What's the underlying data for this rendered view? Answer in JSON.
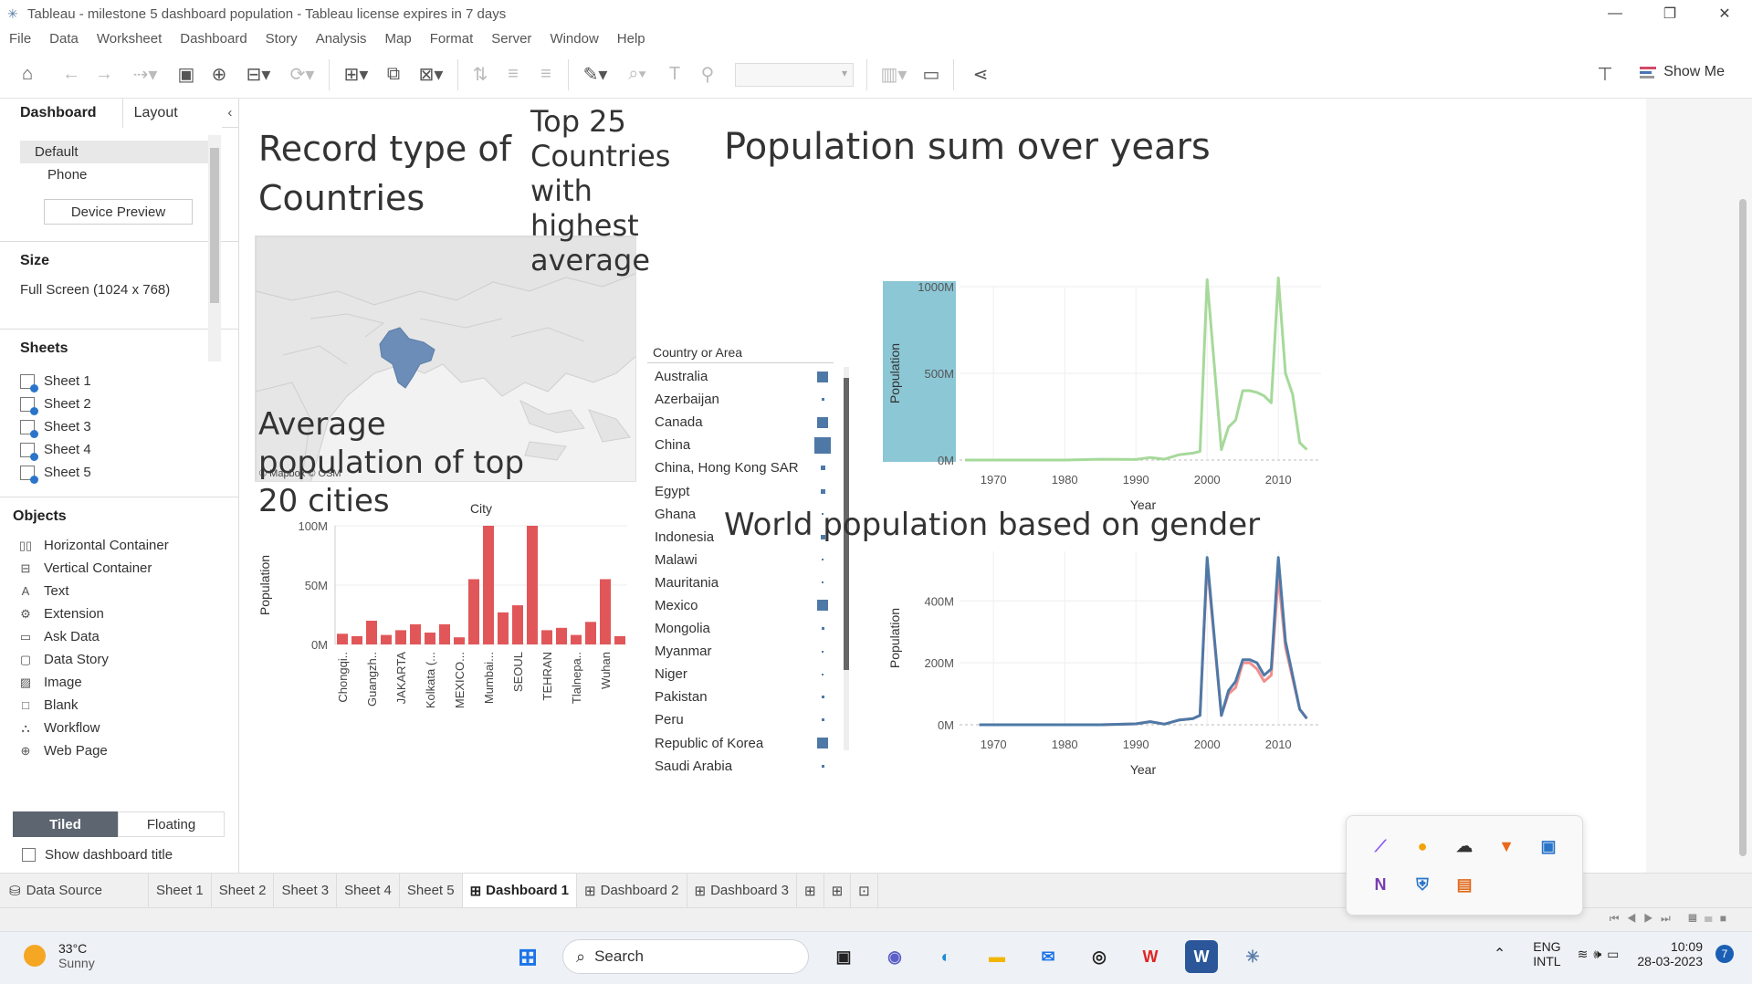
{
  "window": {
    "title": "Tableau - milestone 5 dashboard population - Tableau license expires in 7 days",
    "minimize": "—",
    "restore": "❐",
    "close": "✕"
  },
  "menu": [
    "File",
    "Data",
    "Worksheet",
    "Dashboard",
    "Story",
    "Analysis",
    "Map",
    "Format",
    "Server",
    "Window",
    "Help"
  ],
  "toolbar": {
    "show_me": "Show Me"
  },
  "left_panel": {
    "tabs": {
      "dashboard": "Dashboard",
      "layout": "Layout"
    },
    "devices": {
      "default": "Default",
      "phone": "Phone",
      "device_preview": "Device Preview"
    },
    "size": {
      "heading": "Size",
      "value": "Full Screen (1024 x 768)"
    },
    "sheets": {
      "heading": "Sheets",
      "items": [
        "Sheet 1",
        "Sheet 2",
        "Sheet 3",
        "Sheet 4",
        "Sheet 5"
      ]
    },
    "objects": {
      "heading": "Objects",
      "items": [
        {
          "label": "Horizontal Container",
          "icon": "horizontal-container-icon",
          "glyph": "▯▯"
        },
        {
          "label": "Vertical Container",
          "icon": "vertical-container-icon",
          "glyph": "⊟"
        },
        {
          "label": "Text",
          "icon": "text-icon",
          "glyph": "A"
        },
        {
          "label": "Extension",
          "icon": "extension-icon",
          "glyph": "⚙"
        },
        {
          "label": "Ask Data",
          "icon": "ask-data-icon",
          "glyph": "▭"
        },
        {
          "label": "Data Story",
          "icon": "data-story-icon",
          "glyph": "▢"
        },
        {
          "label": "Image",
          "icon": "image-icon",
          "glyph": "▨"
        },
        {
          "label": "Blank",
          "icon": "blank-icon",
          "glyph": "□"
        },
        {
          "label": "Workflow",
          "icon": "workflow-icon",
          "glyph": "⛬"
        },
        {
          "label": "Web Page",
          "icon": "web-page-icon",
          "glyph": "⊕"
        }
      ]
    },
    "layout_mode": {
      "tiled": "Tiled",
      "floating": "Floating"
    },
    "show_title": "Show dashboard title"
  },
  "dashboard": {
    "map_title": "Record type of Countries",
    "map_credit": "© Mapbox © OSM",
    "top25_title": "Top 25 Countries with highest average",
    "legend": {
      "heading": "Country or Area",
      "rows": [
        {
          "name": "Australia",
          "size": 12
        },
        {
          "name": "Azerbaijan",
          "size": 3
        },
        {
          "name": "Canada",
          "size": 12
        },
        {
          "name": "China",
          "size": 18
        },
        {
          "name": "China, Hong Kong SAR",
          "size": 5
        },
        {
          "name": "Egypt",
          "size": 5
        },
        {
          "name": "Ghana",
          "size": 2
        },
        {
          "name": "Indonesia",
          "size": 5
        },
        {
          "name": "Malawi",
          "size": 2
        },
        {
          "name": "Mauritania",
          "size": 2
        },
        {
          "name": "Mexico",
          "size": 12
        },
        {
          "name": "Mongolia",
          "size": 3
        },
        {
          "name": "Myanmar",
          "size": 2
        },
        {
          "name": "Niger",
          "size": 2
        },
        {
          "name": "Pakistan",
          "size": 3
        },
        {
          "name": "Peru",
          "size": 3
        },
        {
          "name": "Republic of Korea",
          "size": 12
        },
        {
          "name": "Saudi Arabia",
          "size": 3
        }
      ]
    },
    "cities_title": "Average population of top 20 cities",
    "pop_years_title": "Population sum over years",
    "gender_title": "World population based on gender"
  },
  "chart_data": [
    {
      "type": "bar",
      "title": "Average population of top 20 cities",
      "column_header": "City",
      "ylabel": "Population",
      "ylim": [
        0,
        100000000
      ],
      "yticks": [
        "0M",
        "50M",
        "100M"
      ],
      "color": "#e15759",
      "categories": [
        "Chongqi..",
        "",
        "Guangzh..",
        "",
        "JAKARTA",
        "",
        "Kolkata (...",
        "",
        "MEXICO...",
        "",
        "Mumbai...",
        "",
        "SEOUL",
        "",
        "TEHRAN",
        "",
        "Tlalnepa..",
        "",
        "Wuhan",
        ""
      ],
      "values": [
        9000000,
        7000000,
        20000000,
        8000000,
        12000000,
        17000000,
        10000000,
        17000000,
        6000000,
        55000000,
        100000000,
        27000000,
        33000000,
        100000000,
        12000000,
        14000000,
        8000000,
        19000000,
        55000000,
        7000000
      ]
    },
    {
      "type": "line",
      "title": "Population sum over years",
      "xlabel": "Year",
      "ylabel": "Population",
      "xlim": [
        1966,
        2016
      ],
      "ylim": [
        0,
        1000000000
      ],
      "xticks": [
        "1970",
        "1980",
        "1990",
        "2000",
        "2010"
      ],
      "yticks": [
        "0M",
        "500M",
        "1000M"
      ],
      "color": "#a6d99a",
      "x": [
        1966,
        1970,
        1975,
        1980,
        1985,
        1990,
        1992,
        1994,
        1996,
        1998,
        1999,
        2000,
        2002,
        2003,
        2004,
        2005,
        2006,
        2007,
        2008,
        2009,
        2010,
        2011,
        2012,
        2013,
        2014
      ],
      "y": [
        0,
        0,
        0,
        0,
        5000000,
        3000000,
        15000000,
        5000000,
        30000000,
        40000000,
        50000000,
        1040000000,
        60000000,
        190000000,
        230000000,
        400000000,
        400000000,
        390000000,
        370000000,
        330000000,
        1050000000,
        500000000,
        380000000,
        100000000,
        60000000
      ]
    },
    {
      "type": "line",
      "title": "World population based on gender",
      "xlabel": "Year",
      "ylabel": "Population",
      "xlim": [
        1966,
        2016
      ],
      "ylim": [
        0,
        560000000
      ],
      "xticks": [
        "1970",
        "1980",
        "1990",
        "2000",
        "2010"
      ],
      "yticks": [
        "0M",
        "200M",
        "400M"
      ],
      "series": [
        {
          "color": "#f28e8c",
          "x": [
            1968,
            1975,
            1980,
            1985,
            1990,
            1992,
            1994,
            1996,
            1998,
            1999,
            2000,
            2002,
            2003,
            2004,
            2005,
            2006,
            2007,
            2008,
            2009,
            2010,
            2011,
            2012,
            2013,
            2014
          ],
          "y": [
            0,
            0,
            0,
            0,
            3000000,
            10000000,
            2000000,
            15000000,
            20000000,
            30000000,
            520000000,
            30000000,
            100000000,
            120000000,
            200000000,
            200000000,
            180000000,
            140000000,
            160000000,
            480000000,
            250000000,
            150000000,
            50000000,
            20000000
          ]
        },
        {
          "color": "#4e79a7",
          "x": [
            1968,
            1975,
            1980,
            1985,
            1990,
            1992,
            1994,
            1996,
            1998,
            1999,
            2000,
            2002,
            2003,
            2004,
            2005,
            2006,
            2007,
            2008,
            2009,
            2010,
            2011,
            2012,
            2013,
            2014
          ],
          "y": [
            0,
            0,
            0,
            0,
            3000000,
            10000000,
            2000000,
            15000000,
            20000000,
            30000000,
            540000000,
            30000000,
            110000000,
            140000000,
            210000000,
            210000000,
            200000000,
            160000000,
            180000000,
            540000000,
            270000000,
            160000000,
            50000000,
            20000000
          ]
        }
      ]
    }
  ],
  "bottom_tabs": {
    "data_source": "Data Source",
    "sheets": [
      "Sheet 1",
      "Sheet 2",
      "Sheet 3",
      "Sheet 4",
      "Sheet 5"
    ],
    "dashboards": [
      "Dashboard 1",
      "Dashboard 2",
      "Dashboard 3"
    ]
  },
  "taskbar": {
    "weather_temp": "33°C",
    "weather_text": "Sunny",
    "search": "Search",
    "lang1": "ENG",
    "lang2": "INTL",
    "time": "10:09",
    "date": "28-03-2023",
    "notif": "7"
  }
}
